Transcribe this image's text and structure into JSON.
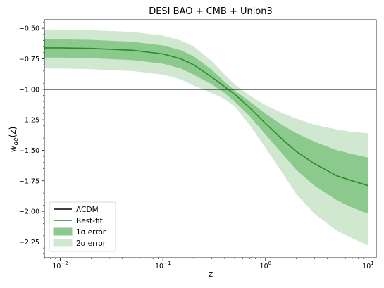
{
  "chart_data": {
    "type": "line",
    "title": "DESI BAO + CMB + Union3",
    "xlabel": "z",
    "ylabel_main": "w",
    "ylabel_sub": "de",
    "ylabel_tail": "(z)",
    "xscale": "log",
    "xlim": [
      0.007,
      12
    ],
    "ylim": [
      -2.38,
      -0.43
    ],
    "x_ticks": [
      {
        "value": 0.01,
        "base": "10",
        "exp": "−2"
      },
      {
        "value": 0.1,
        "base": "10",
        "exp": "−1"
      },
      {
        "value": 1,
        "base": "10",
        "exp": "0"
      },
      {
        "value": 10,
        "base": "10",
        "exp": "1"
      }
    ],
    "y_ticks": [
      {
        "value": -0.5,
        "label": "−0.50"
      },
      {
        "value": -0.75,
        "label": "−0.75"
      },
      {
        "value": -1.0,
        "label": "−1.00"
      },
      {
        "value": -1.25,
        "label": "−1.25"
      },
      {
        "value": -1.5,
        "label": "−1.50"
      },
      {
        "value": -1.75,
        "label": "−1.75"
      },
      {
        "value": -2.0,
        "label": "−2.00"
      },
      {
        "value": -2.25,
        "label": "−2.25"
      }
    ],
    "lcdm_value": -1.0,
    "x": [
      0.007,
      0.01,
      0.02,
      0.05,
      0.1,
      0.15,
      0.2,
      0.3,
      0.4,
      0.5,
      0.7,
      1.0,
      1.5,
      2.0,
      3.0,
      5.0,
      7.0,
      10.0
    ],
    "best_fit": [
      -0.66,
      -0.66,
      -0.665,
      -0.68,
      -0.71,
      -0.75,
      -0.8,
      -0.9,
      -0.98,
      -1.04,
      -1.15,
      -1.28,
      -1.42,
      -1.51,
      -1.61,
      -1.71,
      -1.75,
      -1.79
    ],
    "sigma1_upper": [
      -0.59,
      -0.59,
      -0.595,
      -0.61,
      -0.64,
      -0.68,
      -0.73,
      -0.84,
      -0.94,
      -1.01,
      -1.1,
      -1.2,
      -1.3,
      -1.36,
      -1.43,
      -1.5,
      -1.53,
      -1.56
    ],
    "sigma1_lower": [
      -0.74,
      -0.74,
      -0.745,
      -0.76,
      -0.79,
      -0.83,
      -0.88,
      -0.96,
      -1.03,
      -1.1,
      -1.22,
      -1.37,
      -1.54,
      -1.66,
      -1.79,
      -1.91,
      -1.97,
      -2.02
    ],
    "sigma2_upper": [
      -0.51,
      -0.51,
      -0.515,
      -0.53,
      -0.56,
      -0.6,
      -0.65,
      -0.77,
      -0.88,
      -0.96,
      -1.05,
      -1.13,
      -1.2,
      -1.24,
      -1.29,
      -1.33,
      -1.35,
      -1.36
    ],
    "sigma2_lower": [
      -0.83,
      -0.83,
      -0.835,
      -0.85,
      -0.88,
      -0.92,
      -0.97,
      -1.03,
      -1.08,
      -1.14,
      -1.29,
      -1.48,
      -1.7,
      -1.86,
      -2.02,
      -2.16,
      -2.22,
      -2.28
    ],
    "legend": [
      {
        "label": "ΛCDM",
        "kind": "line",
        "color": "#000000"
      },
      {
        "label": "Best-fit",
        "kind": "line",
        "color": "#2a8c2a"
      },
      {
        "label": "1σ error",
        "kind": "patch",
        "color": "#8cc98c"
      },
      {
        "label": "2σ error",
        "kind": "patch",
        "color": "#cfe8cf"
      }
    ],
    "legend_position": "lower-left",
    "colors": {
      "best_fit": "#2a8c2a",
      "sigma1": "#8cc98c",
      "sigma2": "#cfe8cf",
      "lcdm": "#000000"
    }
  }
}
